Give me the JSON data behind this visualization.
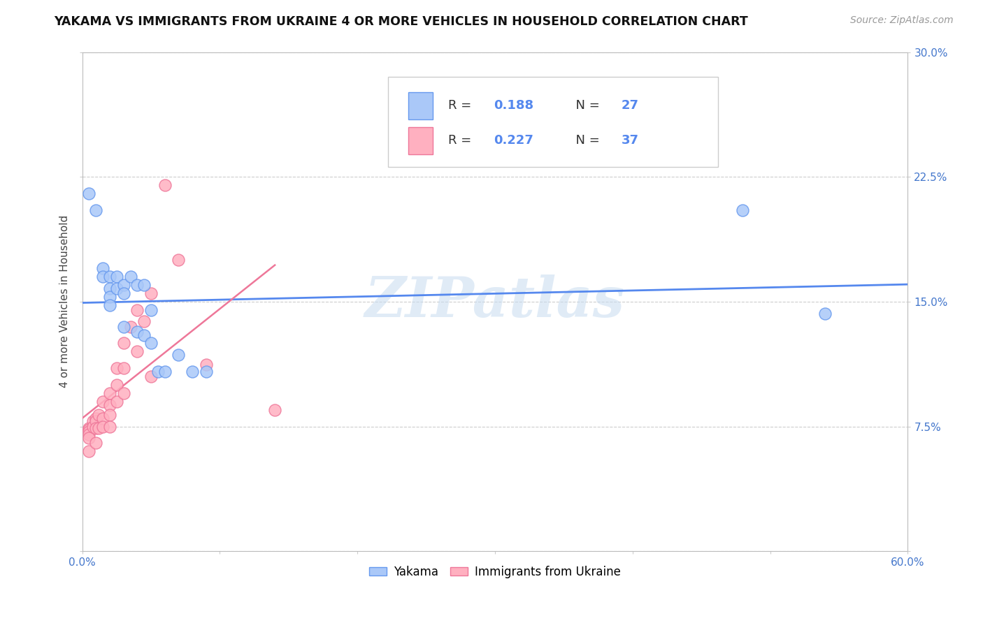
{
  "title": "YAKAMA VS IMMIGRANTS FROM UKRAINE 4 OR MORE VEHICLES IN HOUSEHOLD CORRELATION CHART",
  "source": "Source: ZipAtlas.com",
  "ylabel": "4 or more Vehicles in Household",
  "xlim": [
    0.0,
    0.6
  ],
  "ylim": [
    0.0,
    0.3
  ],
  "xticks": [
    0.0,
    0.1,
    0.2,
    0.3,
    0.4,
    0.5,
    0.6
  ],
  "yticks": [
    0.0,
    0.075,
    0.15,
    0.225,
    0.3
  ],
  "xticklabels": [
    "0.0%",
    "",
    "",
    "",
    "",
    "",
    "60.0%"
  ],
  "yticklabels_right": [
    "",
    "7.5%",
    "15.0%",
    "22.5%",
    "30.0%"
  ],
  "yakama_R": 0.188,
  "yakama_N": 27,
  "ukraine_R": 0.227,
  "ukraine_N": 37,
  "yakama_color": "#aac8f8",
  "ukraine_color": "#ffb0c0",
  "yakama_edge_color": "#6699ee",
  "ukraine_edge_color": "#ee7799",
  "yakama_line_color": "#5588ee",
  "ukraine_line_color": "#ee7799",
  "watermark": "ZIPatlas",
  "background_color": "#ffffff",
  "grid_color": "#cccccc",
  "yakama_x": [
    0.005,
    0.01,
    0.015,
    0.015,
    0.02,
    0.02,
    0.02,
    0.02,
    0.025,
    0.025,
    0.03,
    0.03,
    0.03,
    0.035,
    0.04,
    0.04,
    0.045,
    0.045,
    0.05,
    0.05,
    0.055,
    0.06,
    0.07,
    0.08,
    0.09,
    0.48,
    0.54
  ],
  "yakama_y": [
    0.215,
    0.205,
    0.17,
    0.165,
    0.165,
    0.158,
    0.153,
    0.148,
    0.165,
    0.158,
    0.16,
    0.155,
    0.135,
    0.165,
    0.16,
    0.132,
    0.16,
    0.13,
    0.145,
    0.125,
    0.108,
    0.108,
    0.118,
    0.108,
    0.108,
    0.205,
    0.143
  ],
  "ukraine_x": [
    0.005,
    0.005,
    0.005,
    0.005,
    0.005,
    0.005,
    0.008,
    0.008,
    0.01,
    0.01,
    0.01,
    0.01,
    0.012,
    0.012,
    0.015,
    0.015,
    0.015,
    0.02,
    0.02,
    0.02,
    0.02,
    0.025,
    0.025,
    0.025,
    0.03,
    0.03,
    0.03,
    0.035,
    0.04,
    0.04,
    0.045,
    0.05,
    0.05,
    0.06,
    0.07,
    0.09,
    0.14
  ],
  "ukraine_y": [
    0.074,
    0.073,
    0.072,
    0.07,
    0.068,
    0.06,
    0.078,
    0.075,
    0.08,
    0.078,
    0.074,
    0.065,
    0.082,
    0.074,
    0.09,
    0.08,
    0.075,
    0.095,
    0.088,
    0.082,
    0.075,
    0.11,
    0.1,
    0.09,
    0.125,
    0.11,
    0.095,
    0.135,
    0.145,
    0.12,
    0.138,
    0.155,
    0.105,
    0.22,
    0.175,
    0.112,
    0.085
  ]
}
